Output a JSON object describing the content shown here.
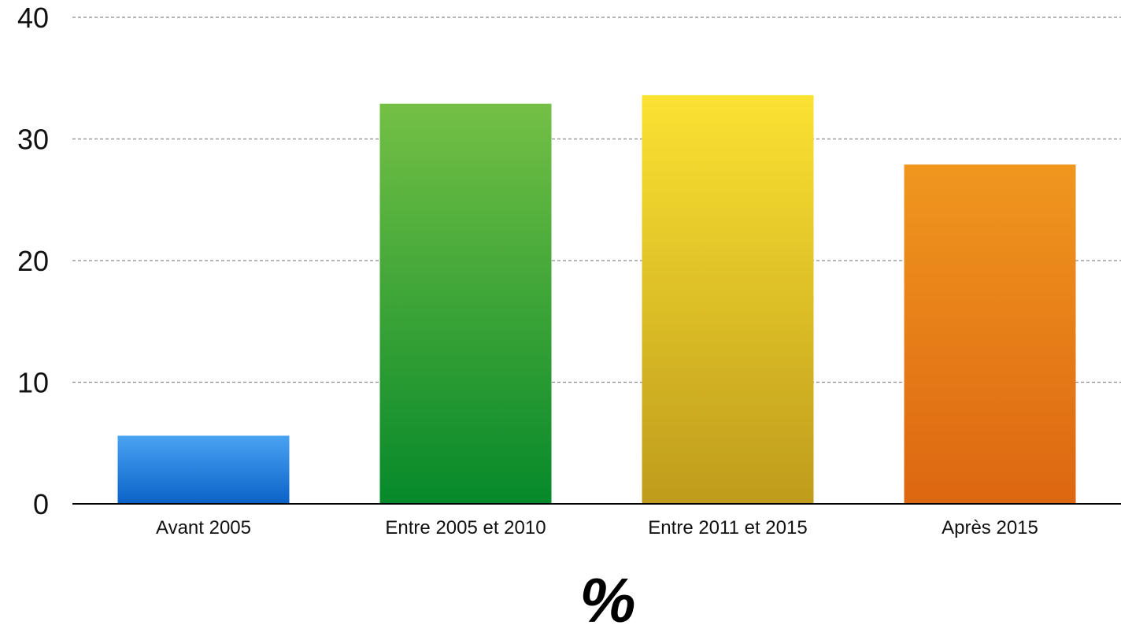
{
  "chart_data": {
    "type": "bar",
    "categories": [
      "Avant 2005",
      "Entre 2005 et 2010",
      "Entre 2011 et 2015",
      "Après 2015"
    ],
    "values": [
      5.6,
      32.9,
      33.6,
      27.9
    ],
    "title": "",
    "xlabel": "%",
    "ylabel": "",
    "ylim": [
      0,
      40
    ],
    "yticks": [
      0,
      10,
      20,
      30,
      40
    ],
    "grid": true,
    "legend": "none",
    "colors": [
      {
        "top": "#4aa3f2",
        "bottom": "#0a62c8"
      },
      {
        "top": "#74c045",
        "bottom": "#06892a"
      },
      {
        "top": "#fbe232",
        "bottom": "#bf9c1c"
      },
      {
        "top": "#f0971f",
        "bottom": "#dd6611"
      }
    ]
  }
}
